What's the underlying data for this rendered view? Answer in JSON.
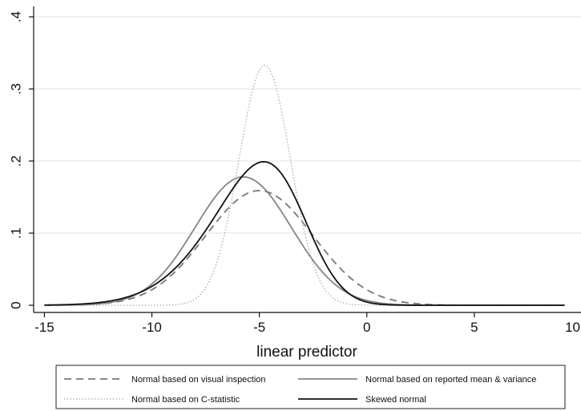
{
  "chart_data": {
    "type": "line",
    "title": "",
    "xlabel": "linear predictor",
    "ylabel": "",
    "xlim": [
      -15.5,
      10
    ],
    "ylim": [
      -0.01,
      0.41
    ],
    "x_ticks": [
      -15,
      -10,
      -5,
      0,
      5,
      10
    ],
    "x_tick_labels": [
      "-15",
      "-10",
      "-5",
      "0",
      "5",
      "10"
    ],
    "y_ticks": [
      0,
      0.1,
      0.2,
      0.3,
      0.4
    ],
    "y_tick_labels": [
      "0",
      ".1",
      ".2",
      ".3",
      ".4"
    ],
    "grid": "horizontal",
    "legend_position": "bottom",
    "x_range": [
      -15,
      9.2
    ],
    "series": [
      {
        "name": "Normal based on visual inspection",
        "dist": "normal",
        "mean": -5.0,
        "sd": 2.5,
        "peak": 0.159,
        "color": "#777777",
        "style": "dashed"
      },
      {
        "name": "Normal based on reported mean & variance",
        "dist": "normal",
        "mean": -5.75,
        "sd": 2.24,
        "peak": 0.178,
        "color": "#858585",
        "style": "solid"
      },
      {
        "name": "Normal based on C-statistic",
        "dist": "normal",
        "mean": -4.75,
        "sd": 1.2,
        "peak": 0.333,
        "color": "#9a9a9a",
        "style": "dotted"
      },
      {
        "name": "Skewed normal",
        "dist": "skew-normal",
        "xi": -3.1,
        "omega": 3.2,
        "alpha": -2.0,
        "peak": 0.199,
        "color": "#111111",
        "style": "solid"
      }
    ]
  }
}
